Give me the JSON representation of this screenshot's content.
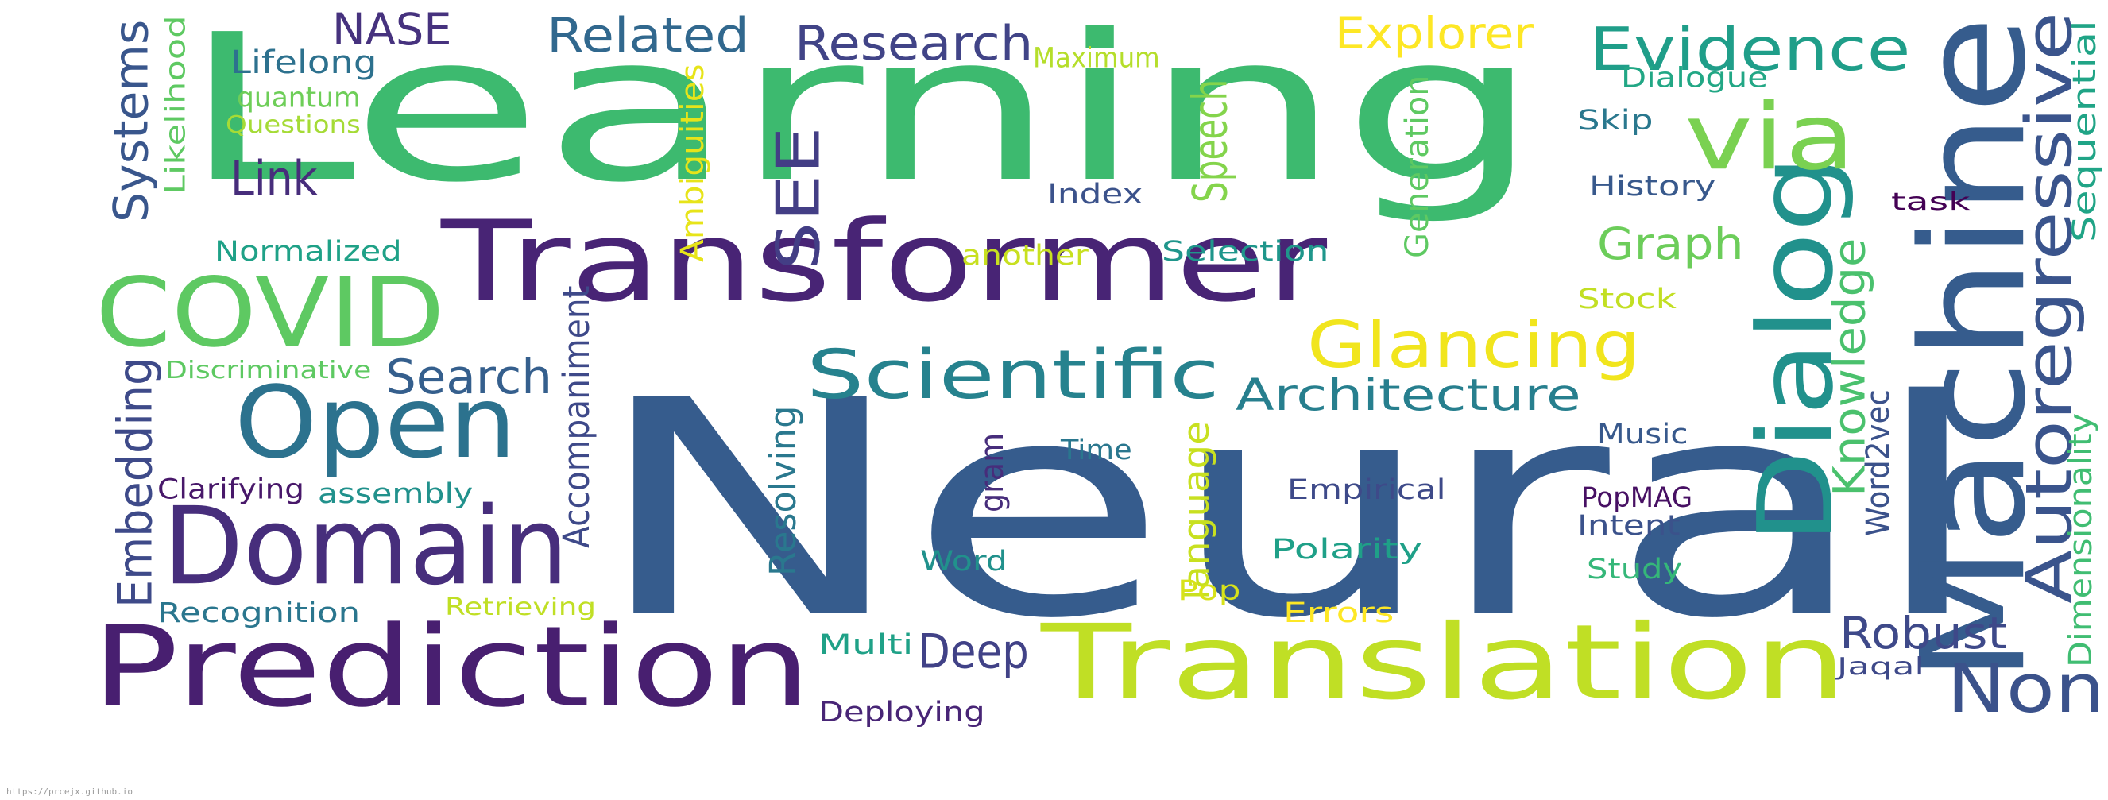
{
  "footer": {
    "url": "https://prcejx.github.io"
  },
  "words": [
    {
      "text": "Learning",
      "color": "#3dba6f"
    },
    {
      "text": "Neural",
      "color": "#365c8d"
    },
    {
      "text": "Transformer",
      "color": "#482475"
    },
    {
      "text": "Prediction",
      "color": "#481f70"
    },
    {
      "text": "Translation",
      "color": "#c0df25"
    },
    {
      "text": "Machine",
      "color": "#365c8d"
    },
    {
      "text": "Domain",
      "color": "#472e7c"
    },
    {
      "text": "Open",
      "color": "#2c728e"
    },
    {
      "text": "COVID",
      "color": "#5ec962"
    },
    {
      "text": "Dialog",
      "color": "#21918c"
    },
    {
      "text": "via",
      "color": "#7ad151"
    },
    {
      "text": "Scientific",
      "color": "#26828e"
    },
    {
      "text": "Glancing",
      "color": "#f1e51d"
    },
    {
      "text": "Evidence",
      "color": "#1f9e89"
    },
    {
      "text": "Autoregressive",
      "color": "#3a548c"
    },
    {
      "text": "Non",
      "color": "#3b528b"
    },
    {
      "text": "Robust",
      "color": "#3e4989"
    },
    {
      "text": "Architecture",
      "color": "#277f8e"
    },
    {
      "text": "Search",
      "color": "#355f8d"
    },
    {
      "text": "Related",
      "color": "#31688e"
    },
    {
      "text": "Research",
      "color": "#414487"
    },
    {
      "text": "NASE",
      "color": "#46327e"
    },
    {
      "text": "Explorer",
      "color": "#fde725"
    },
    {
      "text": "Graph",
      "color": "#6ccd5a"
    },
    {
      "text": "Link",
      "color": "#472d7b"
    },
    {
      "text": "SEE",
      "color": "#433e85"
    },
    {
      "text": "Speech",
      "color": "#84d44b"
    },
    {
      "text": "Systems",
      "color": "#39568c"
    },
    {
      "text": "Embedding",
      "color": "#3e4a89"
    },
    {
      "text": "Deep",
      "color": "#414287"
    },
    {
      "text": "Knowledge",
      "color": "#4ac16d"
    },
    {
      "text": "Lifelong",
      "color": "#2d718e"
    },
    {
      "text": "quantum",
      "color": "#6ece58"
    },
    {
      "text": "Questions",
      "color": "#a5db36"
    },
    {
      "text": "Likelihood",
      "color": "#5ec962"
    },
    {
      "text": "Maximum",
      "color": "#b5de2b"
    },
    {
      "text": "Ambiguities",
      "color": "#e7e419"
    },
    {
      "text": "Normalized",
      "color": "#1fa187"
    },
    {
      "text": "Index",
      "color": "#3b528b"
    },
    {
      "text": "another",
      "color": "#c8e020"
    },
    {
      "text": "Selection",
      "color": "#1f968b"
    },
    {
      "text": "Generation",
      "color": "#5ec962"
    },
    {
      "text": "Dialogue",
      "color": "#22a785"
    },
    {
      "text": "Skip",
      "color": "#2a788e"
    },
    {
      "text": "History",
      "color": "#38598c"
    },
    {
      "text": "task",
      "color": "#440154"
    },
    {
      "text": "Sequential",
      "color": "#20a486"
    },
    {
      "text": "Stock",
      "color": "#c2df23"
    },
    {
      "text": "Discriminative",
      "color": "#5ec962"
    },
    {
      "text": "Accompaniment",
      "color": "#3e4989"
    },
    {
      "text": "Clarifying",
      "color": "#48186a"
    },
    {
      "text": "assembly",
      "color": "#21918c"
    },
    {
      "text": "Recognition",
      "color": "#2a768e"
    },
    {
      "text": "Retrieving",
      "color": "#c0df25"
    },
    {
      "text": "Resolving",
      "color": "#2a788e"
    },
    {
      "text": "gram",
      "color": "#472d7b"
    },
    {
      "text": "Time",
      "color": "#2a778e"
    },
    {
      "text": "language",
      "color": "#c8e020"
    },
    {
      "text": "Music",
      "color": "#38598c"
    },
    {
      "text": "Word2vec",
      "color": "#3b528b"
    },
    {
      "text": "Dimensionality",
      "color": "#40bd72"
    },
    {
      "text": "Empirical",
      "color": "#3e4a89"
    },
    {
      "text": "PopMAG",
      "color": "#471063"
    },
    {
      "text": "Intent",
      "color": "#3b528b"
    },
    {
      "text": "Polarity",
      "color": "#1fa088"
    },
    {
      "text": "Word",
      "color": "#21918c"
    },
    {
      "text": "Pop",
      "color": "#d8e219"
    },
    {
      "text": "Study",
      "color": "#35b779"
    },
    {
      "text": "Errors",
      "color": "#fde725"
    },
    {
      "text": "Multi",
      "color": "#1fa187"
    },
    {
      "text": "Jaqal",
      "color": "#3e4989"
    },
    {
      "text": "Deploying",
      "color": "#482576"
    }
  ]
}
